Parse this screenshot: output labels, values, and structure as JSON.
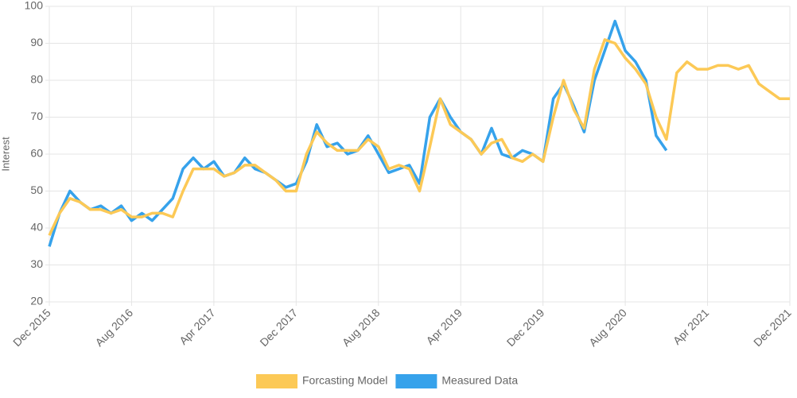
{
  "chart_data": {
    "type": "line",
    "y_label": "Interest",
    "x": [
      "2015-12",
      "2016-01",
      "2016-02",
      "2016-03",
      "2016-04",
      "2016-05",
      "2016-06",
      "2016-07",
      "2016-08",
      "2016-09",
      "2016-10",
      "2016-11",
      "2016-12",
      "2017-01",
      "2017-02",
      "2017-03",
      "2017-04",
      "2017-05",
      "2017-06",
      "2017-07",
      "2017-08",
      "2017-09",
      "2017-10",
      "2017-11",
      "2017-12",
      "2018-01",
      "2018-02",
      "2018-03",
      "2018-04",
      "2018-05",
      "2018-06",
      "2018-07",
      "2018-08",
      "2018-09",
      "2018-10",
      "2018-11",
      "2018-12",
      "2019-01",
      "2019-02",
      "2019-03",
      "2019-04",
      "2019-05",
      "2019-06",
      "2019-07",
      "2019-08",
      "2019-09",
      "2019-10",
      "2019-11",
      "2019-12",
      "2020-01",
      "2020-02",
      "2020-03",
      "2020-04",
      "2020-05",
      "2020-06",
      "2020-07",
      "2020-08",
      "2020-09",
      "2020-10",
      "2020-11",
      "2020-12",
      "2021-01",
      "2021-02",
      "2021-03",
      "2021-04",
      "2021-05",
      "2021-06",
      "2021-07",
      "2021-08",
      "2021-09",
      "2021-10",
      "2021-11",
      "2021-12"
    ],
    "series": [
      {
        "name": "Forcasting Model",
        "color": "#fcc956",
        "values": [
          38,
          44,
          48,
          47,
          45,
          45,
          44,
          45,
          43,
          43,
          44,
          44,
          43,
          50,
          56,
          56,
          56,
          54,
          55,
          57,
          57,
          55,
          53,
          50,
          50,
          60,
          66,
          63,
          61,
          61,
          61,
          64,
          62,
          56,
          57,
          56,
          50,
          62,
          75,
          68,
          66,
          64,
          60,
          63,
          64,
          59,
          58,
          60,
          58,
          70,
          80,
          72,
          67,
          83,
          91,
          90,
          86,
          83,
          79,
          70,
          64,
          82,
          85,
          83,
          83,
          84,
          84,
          83,
          84,
          79,
          77,
          75,
          75
        ]
      },
      {
        "name": "Measured Data",
        "color": "#36a2eb",
        "values": [
          35,
          44,
          50,
          47,
          45,
          46,
          44,
          46,
          42,
          44,
          42,
          45,
          48,
          56,
          59,
          56,
          58,
          54,
          55,
          59,
          56,
          55,
          53,
          51,
          52,
          58,
          68,
          62,
          63,
          60,
          61,
          65,
          60,
          55,
          56,
          57,
          52,
          70,
          75,
          70,
          66,
          64,
          60,
          67,
          60,
          59,
          61,
          60,
          58,
          75,
          79,
          73,
          66,
          80,
          88,
          96,
          88,
          85,
          80,
          65,
          61,
          null,
          null,
          null,
          null,
          null,
          null,
          null,
          null,
          null,
          null,
          null,
          null
        ]
      }
    ],
    "ylim": [
      20,
      100
    ],
    "yticks": [
      20,
      30,
      40,
      50,
      60,
      70,
      80,
      90,
      100
    ],
    "xticks": [
      {
        "value": "2015-12",
        "label": "Dec 2015"
      },
      {
        "value": "2016-08",
        "label": "Aug 2016"
      },
      {
        "value": "2017-04",
        "label": "Apr 2017"
      },
      {
        "value": "2017-12",
        "label": "Dec 2017"
      },
      {
        "value": "2018-08",
        "label": "Aug 2018"
      },
      {
        "value": "2019-04",
        "label": "Apr 2019"
      },
      {
        "value": "2019-12",
        "label": "Dec 2019"
      },
      {
        "value": "2020-08",
        "label": "Aug 2020"
      },
      {
        "value": "2021-04",
        "label": "Apr 2021"
      },
      {
        "value": "2021-12",
        "label": "Dec 2021"
      }
    ],
    "grid": true,
    "legend": "bottom"
  }
}
